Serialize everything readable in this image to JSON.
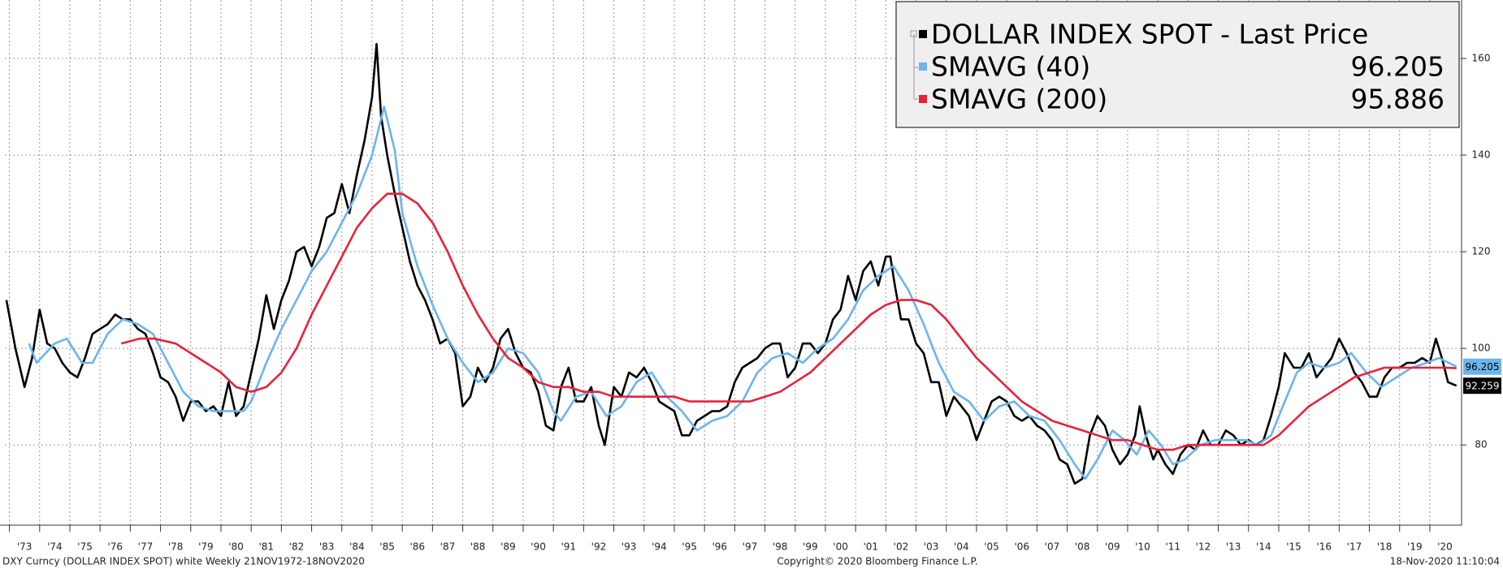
{
  "chart_data": {
    "type": "line",
    "xlim": [
      1972.85,
      2021.05
    ],
    "ylim": [
      63.4,
      172.1
    ],
    "yticks": [
      80,
      100,
      120,
      140,
      160
    ],
    "xticks": [
      {
        "value": 1973,
        "label": "'73"
      },
      {
        "value": 1974,
        "label": "'74"
      },
      {
        "value": 1975,
        "label": "'75"
      },
      {
        "value": 1976,
        "label": "'76"
      },
      {
        "value": 1977,
        "label": "'77"
      },
      {
        "value": 1978,
        "label": "'78"
      },
      {
        "value": 1979,
        "label": "'79"
      },
      {
        "value": 1980,
        "label": "'80"
      },
      {
        "value": 1981,
        "label": "'81"
      },
      {
        "value": 1982,
        "label": "'82"
      },
      {
        "value": 1983,
        "label": "'83"
      },
      {
        "value": 1984,
        "label": "'84"
      },
      {
        "value": 1985,
        "label": "'85"
      },
      {
        "value": 1986,
        "label": "'86"
      },
      {
        "value": 1987,
        "label": "'87"
      },
      {
        "value": 1988,
        "label": "'88"
      },
      {
        "value": 1989,
        "label": "'89"
      },
      {
        "value": 1990,
        "label": "'90"
      },
      {
        "value": 1991,
        "label": "'91"
      },
      {
        "value": 1992,
        "label": "'92"
      },
      {
        "value": 1993,
        "label": "'93"
      },
      {
        "value": 1994,
        "label": "'94"
      },
      {
        "value": 1995,
        "label": "'95"
      },
      {
        "value": 1996,
        "label": "'96"
      },
      {
        "value": 1997,
        "label": "'97"
      },
      {
        "value": 1998,
        "label": "'98"
      },
      {
        "value": 1999,
        "label": "'99"
      },
      {
        "value": 2000,
        "label": "'00"
      },
      {
        "value": 2001,
        "label": "'01"
      },
      {
        "value": 2002,
        "label": "'02"
      },
      {
        "value": 2003,
        "label": "'03"
      },
      {
        "value": 2004,
        "label": "'04"
      },
      {
        "value": 2005,
        "label": "'05"
      },
      {
        "value": 2006,
        "label": "'06"
      },
      {
        "value": 2007,
        "label": "'07"
      },
      {
        "value": 2008,
        "label": "'08"
      },
      {
        "value": 2009,
        "label": "'09"
      },
      {
        "value": 2010,
        "label": "'10"
      },
      {
        "value": 2011,
        "label": "'11"
      },
      {
        "value": 2012,
        "label": "'12"
      },
      {
        "value": 2013,
        "label": "'13"
      },
      {
        "value": 2014,
        "label": "'14"
      },
      {
        "value": 2015,
        "label": "'15"
      },
      {
        "value": 2016,
        "label": "'16"
      },
      {
        "value": 2017,
        "label": "'17"
      },
      {
        "value": 2018,
        "label": "'18"
      },
      {
        "value": 2019,
        "label": "'19"
      },
      {
        "value": 2020,
        "label": "'20"
      }
    ],
    "grid": true,
    "legend": "upper right",
    "footer_left": "DXY Curncy (DOLLAR INDEX SPOT) white  Weekly 21NOV1972-18NOV2020",
    "footer_center": "Copyright© 2020 Bloomberg Finance L.P.",
    "footer_right": "18-Nov-2020 11:10:04",
    "series": [
      {
        "name": "DOLLAR INDEX SPOT - Last Price",
        "color": "#000000",
        "legend_value": false,
        "end_label": true,
        "x": [
          1972.9,
          1973.2,
          1973.5,
          1973.75,
          1974.0,
          1974.25,
          1974.5,
          1974.75,
          1975.0,
          1975.25,
          1975.5,
          1975.75,
          1976.0,
          1976.25,
          1976.5,
          1976.75,
          1977.0,
          1977.25,
          1977.5,
          1977.75,
          1978.0,
          1978.25,
          1978.5,
          1978.75,
          1979.0,
          1979.25,
          1979.5,
          1979.75,
          1980.0,
          1980.25,
          1980.5,
          1980.75,
          1981.0,
          1981.25,
          1981.5,
          1981.75,
          1982.0,
          1982.25,
          1982.5,
          1982.75,
          1983.0,
          1983.25,
          1983.5,
          1983.75,
          1984.0,
          1984.25,
          1984.5,
          1984.75,
          1985.0,
          1985.15,
          1985.3,
          1985.5,
          1985.75,
          1986.0,
          1986.25,
          1986.5,
          1986.75,
          1987.0,
          1987.25,
          1987.5,
          1987.75,
          1988.0,
          1988.25,
          1988.5,
          1988.75,
          1989.0,
          1989.25,
          1989.5,
          1989.75,
          1990.0,
          1990.25,
          1990.5,
          1990.75,
          1991.0,
          1991.25,
          1991.5,
          1991.75,
          1992.0,
          1992.25,
          1992.5,
          1992.7,
          1993.0,
          1993.25,
          1993.5,
          1993.75,
          1994.0,
          1994.25,
          1994.5,
          1994.75,
          1995.0,
          1995.25,
          1995.5,
          1995.75,
          1996.0,
          1996.25,
          1996.5,
          1996.75,
          1997.0,
          1997.25,
          1997.5,
          1997.75,
          1998.0,
          1998.25,
          1998.5,
          1998.75,
          1999.0,
          1999.25,
          1999.5,
          1999.75,
          2000.0,
          2000.25,
          2000.5,
          2000.75,
          2001.0,
          2001.25,
          2001.5,
          2001.75,
          2002.0,
          2002.15,
          2002.3,
          2002.5,
          2002.75,
          2003.0,
          2003.25,
          2003.5,
          2003.75,
          2004.0,
          2004.25,
          2004.5,
          2004.75,
          2005.0,
          2005.25,
          2005.5,
          2005.75,
          2006.0,
          2006.25,
          2006.5,
          2006.75,
          2007.0,
          2007.25,
          2007.5,
          2007.75,
          2008.0,
          2008.25,
          2008.5,
          2008.75,
          2009.0,
          2009.25,
          2009.5,
          2009.75,
          2010.0,
          2010.25,
          2010.4,
          2010.6,
          2010.85,
          2011.0,
          2011.25,
          2011.5,
          2011.75,
          2012.0,
          2012.25,
          2012.5,
          2012.75,
          2013.0,
          2013.25,
          2013.5,
          2013.75,
          2014.0,
          2014.25,
          2014.5,
          2014.75,
          2015.0,
          2015.2,
          2015.5,
          2015.75,
          2016.0,
          2016.25,
          2016.5,
          2016.75,
          2017.0,
          2017.25,
          2017.5,
          2017.75,
          2018.0,
          2018.25,
          2018.5,
          2018.75,
          2019.0,
          2019.25,
          2019.5,
          2019.75,
          2020.0,
          2020.2,
          2020.4,
          2020.6,
          2020.88
        ],
        "values": [
          110,
          100,
          92,
          98,
          108,
          101,
          100,
          97,
          95,
          94,
          98,
          103,
          104,
          105,
          107,
          106,
          106,
          104,
          103,
          99,
          94,
          93,
          90,
          85,
          89,
          89,
          87,
          88,
          86,
          93,
          86,
          88,
          95,
          102,
          111,
          104,
          110,
          114,
          120,
          121,
          117,
          121,
          127,
          128,
          134,
          128,
          136,
          143,
          152,
          163,
          148,
          140,
          132,
          125,
          118,
          113,
          110,
          106,
          101,
          102,
          99,
          88,
          90,
          96,
          93,
          96,
          102,
          104,
          99,
          96,
          95,
          91,
          84,
          83,
          92,
          96,
          89,
          89,
          92,
          84,
          80,
          92,
          90,
          95,
          94,
          96,
          93,
          89,
          88,
          87,
          82,
          82,
          85,
          86,
          87,
          87,
          88,
          93,
          96,
          97,
          98,
          100,
          101,
          101,
          94,
          96,
          101,
          101,
          99,
          101,
          106,
          108,
          115,
          110,
          116,
          118,
          113,
          119,
          119,
          113,
          106,
          106,
          101,
          99,
          93,
          93,
          86,
          90,
          88,
          86,
          81,
          85,
          89,
          90,
          89,
          86,
          85,
          86,
          84,
          83,
          81,
          77,
          76,
          72,
          73,
          82,
          86,
          84,
          79,
          76,
          78,
          82,
          88,
          82,
          77,
          79,
          76,
          74,
          78,
          80,
          79,
          83,
          80,
          80,
          83,
          82,
          80,
          81,
          80,
          81,
          86,
          92,
          99,
          96,
          96,
          99,
          94,
          96,
          98,
          102,
          99,
          95,
          93,
          90,
          90,
          94,
          96,
          96,
          97,
          97,
          98,
          97,
          102,
          98,
          93,
          92.259
        ]
      },
      {
        "name": "SMAVG (40)",
        "color": "#6cb4ee",
        "legend_value": true,
        "end_label": true,
        "x": [
          1973.65,
          1973.9,
          1974.5,
          1974.9,
          1975.4,
          1975.75,
          1976.25,
          1976.75,
          1977.25,
          1977.75,
          1978.25,
          1978.75,
          1979.25,
          1979.75,
          1980.25,
          1980.75,
          1981.0,
          1981.5,
          1982.0,
          1982.5,
          1983.0,
          1983.5,
          1984.0,
          1984.5,
          1985.0,
          1985.4,
          1985.75,
          1986.0,
          1986.5,
          1987.0,
          1987.5,
          1988.0,
          1988.5,
          1989.0,
          1989.5,
          1990.0,
          1990.5,
          1991.0,
          1991.25,
          1991.75,
          1992.25,
          1992.75,
          1993.25,
          1993.75,
          1994.25,
          1994.75,
          1995.25,
          1995.75,
          1996.25,
          1996.75,
          1997.25,
          1997.75,
          1998.25,
          1998.75,
          1999.25,
          1999.75,
          2000.25,
          2000.75,
          2001.25,
          2001.75,
          2002.25,
          2002.75,
          2003.25,
          2003.75,
          2004.25,
          2004.75,
          2005.25,
          2005.75,
          2006.25,
          2006.75,
          2007.25,
          2007.75,
          2008.25,
          2008.6,
          2009.0,
          2009.5,
          2009.9,
          2010.3,
          2010.7,
          2011.1,
          2011.5,
          2011.9,
          2012.4,
          2012.9,
          2013.4,
          2013.9,
          2014.3,
          2014.75,
          2015.2,
          2015.6,
          2016.0,
          2016.5,
          2017.0,
          2017.4,
          2017.9,
          2018.4,
          2018.9,
          2019.4,
          2019.9,
          2020.3,
          2020.88
        ],
        "values": [
          101,
          97,
          101,
          102,
          97,
          97,
          103,
          106,
          105,
          103,
          97,
          91,
          88,
          87,
          87,
          87,
          89,
          97,
          104,
          110,
          116,
          120,
          126,
          132,
          140,
          150,
          141,
          128,
          117,
          109,
          102,
          97,
          93,
          95,
          100,
          99,
          95,
          87,
          85,
          90,
          91,
          86,
          88,
          93,
          95,
          90,
          87,
          83,
          85,
          86,
          89,
          95,
          98,
          99,
          97,
          100,
          102,
          106,
          112,
          115,
          117,
          112,
          105,
          97,
          91,
          89,
          85,
          88,
          89,
          86,
          85,
          81,
          76,
          73,
          77,
          83,
          81,
          78,
          83,
          80,
          76,
          77,
          80,
          81,
          81,
          81,
          80,
          82,
          89,
          95,
          97,
          96,
          97,
          99,
          95,
          92,
          94,
          96,
          97,
          98,
          96.205
        ]
      },
      {
        "name": "SMAVG (200)",
        "color": "#e8223a",
        "legend_value": true,
        "end_label": false,
        "x": [
          1976.7,
          1977.3,
          1977.8,
          1978.5,
          1979.0,
          1979.5,
          1980.0,
          1980.5,
          1981.0,
          1981.5,
          1982.0,
          1982.5,
          1983.0,
          1983.5,
          1984.0,
          1984.5,
          1985.0,
          1985.5,
          1986.0,
          1986.5,
          1987.0,
          1987.5,
          1988.0,
          1988.5,
          1989.0,
          1989.5,
          1990.0,
          1990.5,
          1991.0,
          1991.5,
          1992.0,
          1992.5,
          1993.0,
          1993.5,
          1994.0,
          1994.5,
          1995.0,
          1995.5,
          1996.0,
          1996.5,
          1997.0,
          1997.5,
          1998.0,
          1998.5,
          1999.0,
          1999.5,
          2000.0,
          2000.5,
          2001.0,
          2001.5,
          2002.0,
          2002.5,
          2003.0,
          2003.5,
          2004.0,
          2004.5,
          2005.0,
          2005.5,
          2006.0,
          2006.5,
          2007.0,
          2007.5,
          2008.0,
          2008.5,
          2009.0,
          2009.5,
          2010.0,
          2010.5,
          2011.0,
          2011.5,
          2012.0,
          2012.5,
          2013.0,
          2013.5,
          2014.0,
          2014.5,
          2015.0,
          2015.5,
          2016.0,
          2016.5,
          2017.0,
          2017.5,
          2018.0,
          2018.5,
          2019.0,
          2019.5,
          2020.0,
          2020.5,
          2020.88
        ],
        "values": [
          101,
          102,
          102,
          101,
          99,
          97,
          95,
          92,
          91,
          92,
          95,
          100,
          107,
          113,
          119,
          125,
          129,
          132,
          132,
          130,
          126,
          120,
          113,
          107,
          102,
          98,
          96,
          93,
          92,
          92,
          91,
          91,
          90,
          90,
          90,
          90,
          90,
          89,
          89,
          89,
          89,
          89,
          90,
          91,
          93,
          95,
          98,
          101,
          104,
          107,
          109,
          110,
          110,
          109,
          106,
          102,
          98,
          95,
          92,
          89,
          87,
          85,
          84,
          83,
          82,
          81,
          81,
          80,
          79,
          79,
          80,
          80,
          80,
          80,
          80,
          80,
          82,
          85,
          88,
          90,
          92,
          94,
          95,
          96,
          96,
          96,
          96,
          96,
          95.886
        ]
      }
    ]
  }
}
